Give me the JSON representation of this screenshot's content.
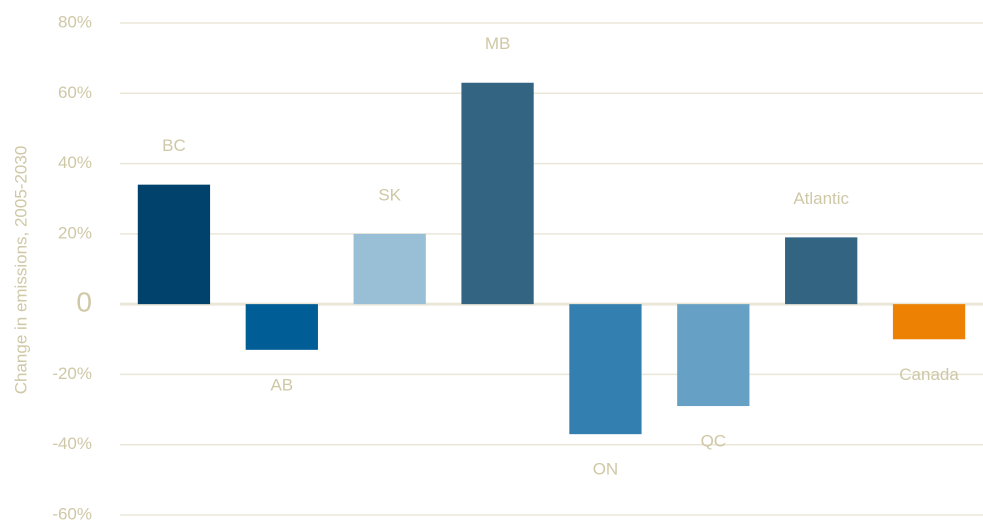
{
  "chart_data": {
    "type": "bar",
    "y_axis_label": "Change in emissions, 2005-2030",
    "categories": [
      "BC",
      "AB",
      "SK",
      "MB",
      "ON",
      "QC",
      "Atlantic",
      "Canada"
    ],
    "values": [
      34,
      -13,
      20,
      63,
      -37,
      -29,
      19,
      -10
    ],
    "colors": [
      "#00426b",
      "#005d96",
      "#99bfd6",
      "#336583",
      "#3380b0",
      "#66a0c4",
      "#336583",
      "#ec8103"
    ],
    "ylim": [
      -60,
      80
    ],
    "yticks": [
      {
        "value": -60,
        "label": "-60%"
      },
      {
        "value": -40,
        "label": "-40%"
      },
      {
        "value": -20,
        "label": "-20%"
      },
      0,
      {
        "value": 20,
        "label": "20%"
      },
      {
        "value": 40,
        "label": "40%"
      },
      {
        "value": 60,
        "label": "60%"
      },
      {
        "value": 80,
        "label": "80%"
      }
    ],
    "grid": true
  }
}
